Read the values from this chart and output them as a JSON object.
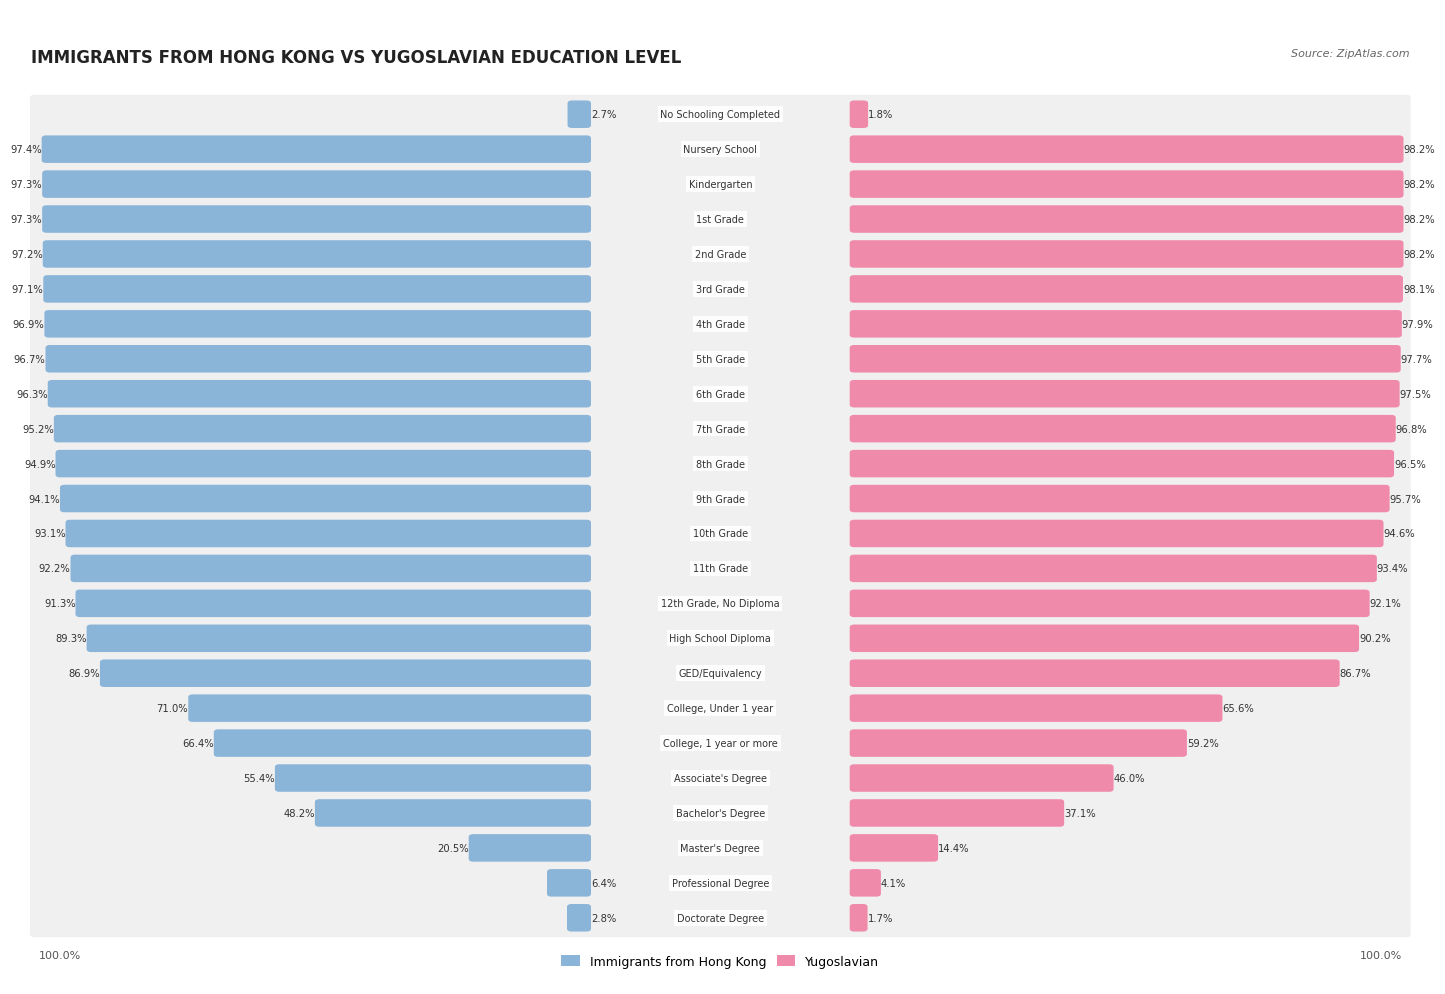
{
  "title": "IMMIGRANTS FROM HONG KONG VS YUGOSLAVIAN EDUCATION LEVEL",
  "source": "Source: ZipAtlas.com",
  "categories": [
    "No Schooling Completed",
    "Nursery School",
    "Kindergarten",
    "1st Grade",
    "2nd Grade",
    "3rd Grade",
    "4th Grade",
    "5th Grade",
    "6th Grade",
    "7th Grade",
    "8th Grade",
    "9th Grade",
    "10th Grade",
    "11th Grade",
    "12th Grade, No Diploma",
    "High School Diploma",
    "GED/Equivalency",
    "College, Under 1 year",
    "College, 1 year or more",
    "Associate's Degree",
    "Bachelor's Degree",
    "Master's Degree",
    "Professional Degree",
    "Doctorate Degree"
  ],
  "hong_kong": [
    2.7,
    97.4,
    97.3,
    97.3,
    97.2,
    97.1,
    96.9,
    96.7,
    96.3,
    95.2,
    94.9,
    94.1,
    93.1,
    92.2,
    91.3,
    89.3,
    86.9,
    71.0,
    66.4,
    55.4,
    48.2,
    20.5,
    6.4,
    2.8
  ],
  "yugoslavian": [
    1.8,
    98.2,
    98.2,
    98.2,
    98.2,
    98.1,
    97.9,
    97.7,
    97.5,
    96.8,
    96.5,
    95.7,
    94.6,
    93.4,
    92.1,
    90.2,
    86.7,
    65.6,
    59.2,
    46.0,
    37.1,
    14.4,
    4.1,
    1.7
  ],
  "hk_color": "#8ab4d8",
  "yugo_color": "#f08aaa",
  "bg_color": "#ffffff",
  "bar_bg_color": "#e8e8e8",
  "row_bg_color": "#f0f0f0"
}
